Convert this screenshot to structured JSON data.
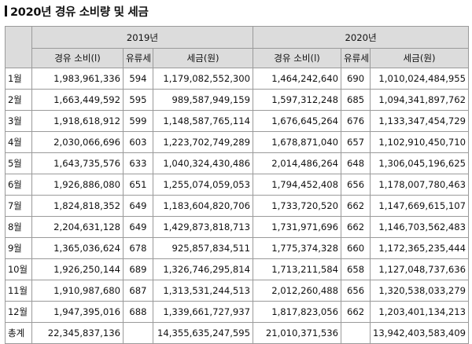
{
  "title": "2020년 경유 소비량 및 세금",
  "years": [
    "2019년",
    "2020년"
  ],
  "subheaders": [
    "경유 소비(l)",
    "유류세",
    "세금(원)",
    "경유 소비(l)",
    "유류세",
    "세금(원)"
  ],
  "rows": [
    {
      "month": "1월",
      "c19": "1,983,961,336",
      "r19": "594",
      "t19": "1,179,082,552,300",
      "c20": "1,464,242,640",
      "r20": "690",
      "t20": "1,010,024,484,955"
    },
    {
      "month": "2월",
      "c19": "1,663,449,592",
      "r19": "595",
      "t19": "989,587,949,159",
      "c20": "1,597,312,248",
      "r20": "685",
      "t20": "1,094,341,897,762"
    },
    {
      "month": "3월",
      "c19": "1,918,618,912",
      "r19": "599",
      "t19": "1,148,587,765,114",
      "c20": "1,676,645,264",
      "r20": "676",
      "t20": "1,133,347,454,729"
    },
    {
      "month": "4월",
      "c19": "2,030,066,696",
      "r19": "603",
      "t19": "1,223,702,749,289",
      "c20": "1,678,871,040",
      "r20": "657",
      "t20": "1,102,910,450,710"
    },
    {
      "month": "5월",
      "c19": "1,643,735,576",
      "r19": "633",
      "t19": "1,040,324,430,486",
      "c20": "2,014,486,264",
      "r20": "648",
      "t20": "1,306,045,196,625"
    },
    {
      "month": "6월",
      "c19": "1,926,886,080",
      "r19": "651",
      "t19": "1,255,074,059,053",
      "c20": "1,794,452,408",
      "r20": "656",
      "t20": "1,178,007,780,463"
    },
    {
      "month": "7월",
      "c19": "1,824,818,352",
      "r19": "649",
      "t19": "1,183,604,820,706",
      "c20": "1,733,720,520",
      "r20": "662",
      "t20": "1,147,669,615,107"
    },
    {
      "month": "8월",
      "c19": "2,204,631,128",
      "r19": "649",
      "t19": "1,429,873,818,713",
      "c20": "1,731,971,696",
      "r20": "662",
      "t20": "1,146,703,562,483"
    },
    {
      "month": "9월",
      "c19": "1,365,036,624",
      "r19": "678",
      "t19": "925,857,834,511",
      "c20": "1,775,374,328",
      "r20": "660",
      "t20": "1,172,365,235,444"
    },
    {
      "month": "10월",
      "c19": "1,926,250,144",
      "r19": "689",
      "t19": "1,326,746,295,814",
      "c20": "1,713,211,584",
      "r20": "658",
      "t20": "1,127,048,737,636"
    },
    {
      "month": "11월",
      "c19": "1,910,987,680",
      "r19": "687",
      "t19": "1,313,531,244,513",
      "c20": "2,012,260,488",
      "r20": "656",
      "t20": "1,320,538,033,279"
    },
    {
      "month": "12월",
      "c19": "1,947,395,016",
      "r19": "688",
      "t19": "1,339,661,727,937",
      "c20": "1,817,823,056",
      "r20": "662",
      "t20": "1,203,401,134,213"
    },
    {
      "month": "총계",
      "c19": "22,345,837,136",
      "r19": "",
      "t19": "14,355,635,247,595",
      "c20": "21,010,371,536",
      "r20": "",
      "t20": "13,942,403,583,409"
    }
  ]
}
